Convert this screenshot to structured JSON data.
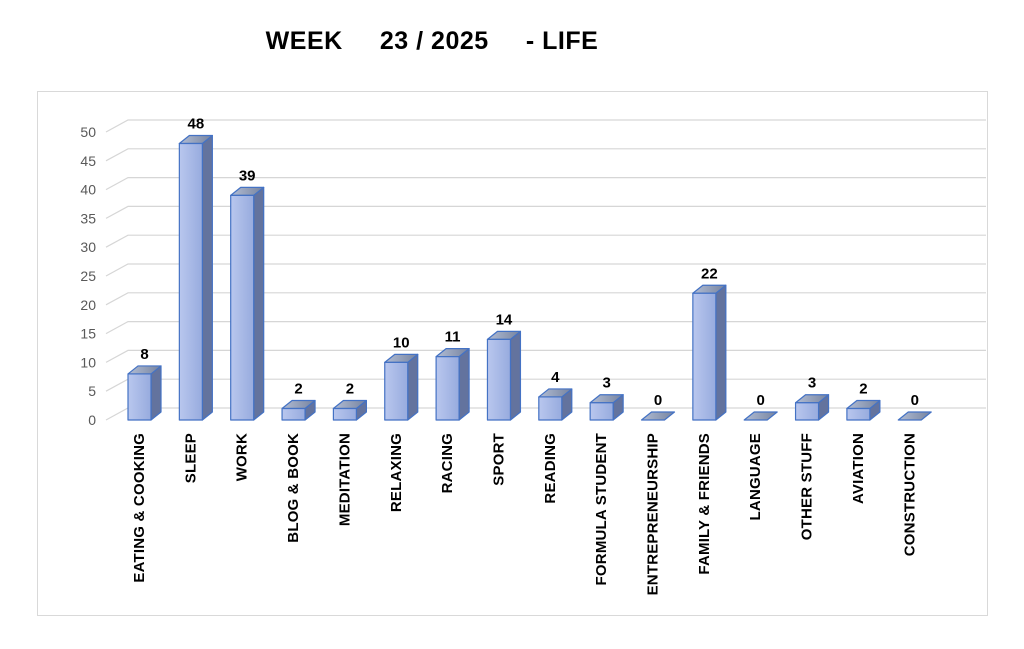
{
  "page": {
    "title": "WEEK     23 / 2025     - LIFE"
  },
  "chart_data": {
    "type": "bar",
    "style": "3d-clustered-column",
    "title": "WEEK 23 / 2025 - LIFE",
    "categories": [
      "EATING & COOKING",
      "SLEEP",
      "WORK",
      "BLOG & BOOK",
      "MEDITATION",
      "RELAXING",
      "RACING",
      "SPORT",
      "READING",
      "FORMULA STUDENT",
      "ENTREPRENEURSHIP",
      "FAMILY & FRIENDS",
      "LANGUAGE",
      "OTHER STUFF",
      "AVIATION",
      "CONSTRUCTION"
    ],
    "values": [
      8,
      48,
      39,
      2,
      2,
      10,
      11,
      14,
      4,
      3,
      0,
      22,
      0,
      3,
      2,
      0
    ],
    "xlabel": "",
    "ylabel": "",
    "ylim": [
      0,
      50
    ],
    "ytick_step": 5,
    "grid": true,
    "legend": "none",
    "data_labels": true,
    "colors": {
      "bar_front_light": "#B9C7EE",
      "bar_front": "#97ABDE",
      "bar_side": "#63739E",
      "bar_top_light": "#B2BDD4",
      "bar_top": "#76839F",
      "bar_stroke": "#4472C4",
      "gridline": "#D6D6D6",
      "tick_text": "#595959",
      "label_text": "#000000",
      "chart_border": "#D9D9D9",
      "background": "#FFFFFF"
    }
  }
}
